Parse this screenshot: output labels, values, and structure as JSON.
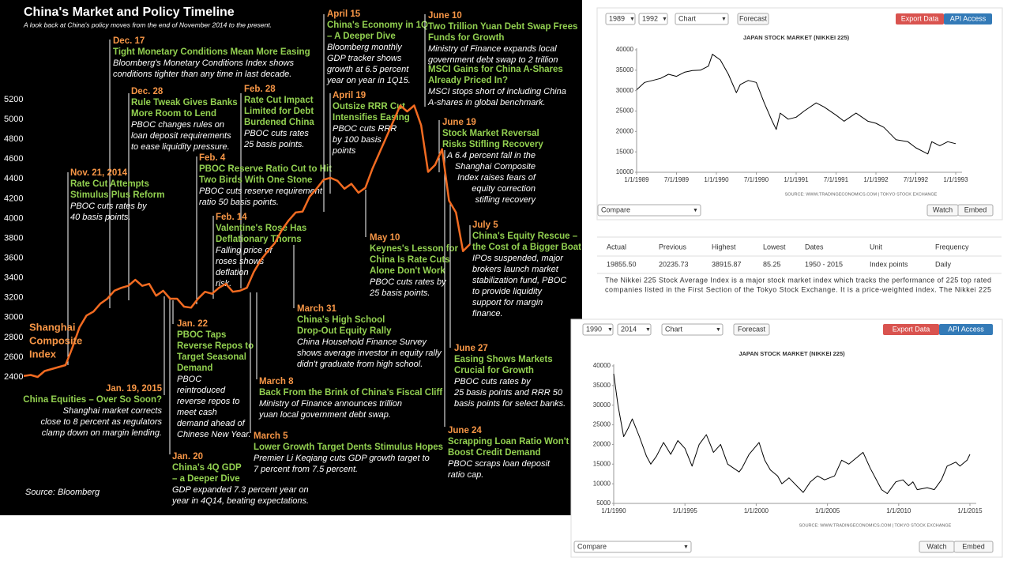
{
  "chart_data": [
    {
      "type": "line",
      "title": "China's Market and Policy Timeline",
      "subtitle": "A look back at China's policy moves from the end of November 2014 to the present.",
      "source": "Source: Bloomberg",
      "series": [
        {
          "name": [
            "Shanghai",
            "Composite",
            "Index"
          ],
          "color": "#f26b21",
          "values": [
            2410,
            2420,
            2400,
            2460,
            2480,
            2500,
            2520,
            2700,
            2900,
            3020,
            3060,
            3140,
            3190,
            3270,
            3300,
            3320,
            3380,
            3320,
            3340,
            3220,
            3270,
            3190,
            3190,
            3110,
            3100,
            3190,
            3260,
            3240,
            3300,
            3340,
            3260,
            3270,
            3300,
            3460,
            3580,
            3670,
            3750,
            3880,
            3980,
            4060,
            4070,
            4220,
            4300,
            4390,
            4410,
            4380,
            4300,
            4350,
            4260,
            4310,
            4500,
            4660,
            4820,
            4980,
            5140,
            5080,
            5140,
            4940,
            4470,
            4540,
            4700,
            4180,
            4060,
            3670,
            3740
          ]
        }
      ],
      "ylim": [
        2400,
        5200
      ],
      "yticks": [
        2400,
        2600,
        2800,
        3000,
        3200,
        3400,
        3600,
        3800,
        4000,
        4200,
        4400,
        4600,
        4800,
        5000,
        5200
      ],
      "annotations": [
        {
          "date": "Dec. 17",
          "title": [
            "Tight Monetary Conditions Mean More Easing"
          ],
          "text": [
            "Bloomberg's Monetary Conditions Index shows",
            "conditions tighter than any time in last decade."
          ]
        },
        {
          "date": "Dec. 28",
          "title": [
            "Rule Tweak Gives Banks",
            "More Room to Lend"
          ],
          "text": [
            "PBOC changes rules on",
            "loan deposit requirements",
            "to ease liquidity pressure."
          ]
        },
        {
          "date": "Nov. 21, 2014",
          "title": [
            "Rate Cut Attempts",
            "Stimulus Plus Reform"
          ],
          "text": [
            "PBOC cuts rates by",
            "40 basis points."
          ]
        },
        {
          "date": "Feb. 28",
          "title": [
            "Rate Cut Impact",
            "Limited for Debt",
            "Burdened China"
          ],
          "text": [
            "PBOC cuts rates",
            "25 basis points."
          ]
        },
        {
          "date": "Feb. 4",
          "title": [
            "PBOC Reserve Ratio Cut to Hit",
            "Two Birds With One Stone"
          ],
          "text": [
            "PBOC cuts reserve requirement",
            "ratio 50 basis points."
          ]
        },
        {
          "date": "Feb. 14",
          "title": [
            "Valentine's Rose Has",
            "Deflationary Thorns"
          ],
          "text": [
            "Falling price of",
            "roses shows",
            "deflation",
            "risk."
          ]
        },
        {
          "date": "April 15",
          "title": [
            "China's Economy in 1Q",
            "– A Deeper Dive"
          ],
          "text": [
            "Bloomberg monthly",
            "GDP tracker shows",
            "growth at 6.5 percent",
            "year on year in 1Q15."
          ]
        },
        {
          "date": "April 19",
          "title": [
            "Outsize RRR Cut",
            "Intensifies Easing"
          ],
          "text": [
            "PBOC cuts RRR",
            "by 100 basis",
            "points"
          ]
        },
        {
          "date": "June 10",
          "title": [
            "Two Trillion Yuan Debt Swap Frees",
            "Funds for Growth"
          ],
          "text": [
            "Ministry of Finance expands local",
            "government debt swap to 2 trillion"
          ]
        },
        {
          "title": [
            "MSCI Gains for China A-Shares",
            "Already Priced In?"
          ],
          "text": [
            "MSCI stops short of including China",
            "A-shares in global benchmark."
          ]
        },
        {
          "date": "June 19",
          "title": [
            "Stock Market Reversal",
            "Risks Stifling Recovery"
          ],
          "text": [
            "A 6.4 percent fall in the",
            "Shanghai Composite",
            "Index raises fears of",
            "equity correction",
            "stifling recovery"
          ]
        },
        {
          "date": "May 10",
          "title": [
            "Keynes's Lesson for",
            "China Is Rate Cuts",
            "Alone Don't Work"
          ],
          "text": [
            "PBOC cuts rates by",
            "25 basis points."
          ]
        },
        {
          "date": "July 5",
          "title": [
            "China's Equity Rescue –",
            "the Cost of a Bigger Boat"
          ],
          "text": [
            "IPOs suspended, major",
            "brokers launch market",
            "stabilization fund, PBOC",
            "to provide liquidity",
            "support for margin",
            "finance."
          ]
        },
        {
          "date": "March 31",
          "title": [
            "China's High School",
            "Drop-Out Equity Rally"
          ],
          "text": [
            "China Household Finance Survey",
            "shows average investor in equity rally",
            "didn't graduate from high school."
          ]
        },
        {
          "date": "Jan. 22",
          "title": [
            "PBOC Taps",
            "Reverse Repos to",
            "Target Seasonal",
            "Demand"
          ],
          "text": [
            "PBOC",
            "reintroduced",
            "reverse repos to",
            "meet cash",
            "demand ahead of",
            "Chinese New Year."
          ]
        },
        {
          "date": "March 8",
          "title": [
            "Back From the Brink of China's Fiscal Cliff"
          ],
          "text": [
            "Ministry of Finance announces trillion",
            "yuan local government debt swap."
          ]
        },
        {
          "date": "June 27",
          "title": [
            "Easing Shows Markets",
            "Crucial for Growth"
          ],
          "text": [
            "PBOC cuts rates by",
            "25 basis points and RRR 50",
            "basis points for select banks."
          ]
        },
        {
          "date": "Jan. 19, 2015",
          "title": [
            "China Equities – Over So Soon?"
          ],
          "text": [
            "Shanghai market corrects",
            "close to 8 percent as regulators",
            "clamp down on margin lending."
          ]
        },
        {
          "date": "June 24",
          "title": [
            "Scrapping Loan Ratio Won't",
            "Boost Credit Demand"
          ],
          "text": [
            "PBOC scraps loan deposit",
            "ratio cap."
          ]
        },
        {
          "date": "March 5",
          "title": [
            "Lower Growth Target Dents Stimulus Hopes"
          ],
          "text": [
            "Premier Li Keqiang cuts GDP growth target to",
            "7 percent from 7.5 percent."
          ]
        },
        {
          "date": "Jan. 20",
          "title": [
            "China's 4Q GDP",
            "– a Deeper Dive"
          ],
          "text": [
            "GDP expanded 7.3 percent year on",
            "year in 4Q14, beating expectations."
          ]
        }
      ]
    },
    {
      "type": "line",
      "title": "JAPAN STOCK MARKET (NIKKEI 225)",
      "source": "SOURCE: WWW.TRADINGECONOMICS.COM | TOKYO STOCK EXCHANGE",
      "x": [
        1989,
        1989.1,
        1989.2,
        1989.3,
        1989.4,
        1989.5,
        1989.6,
        1989.7,
        1989.8,
        1989.9,
        1989.95,
        1990.05,
        1990.15,
        1990.25,
        1990.3,
        1990.4,
        1990.5,
        1990.6,
        1990.7,
        1990.75,
        1990.8,
        1990.9,
        1991,
        1991.1,
        1991.25,
        1991.35,
        1991.5,
        1991.6,
        1991.75,
        1991.9,
        1992,
        1992.1,
        1992.25,
        1992.4,
        1992.5,
        1992.6,
        1992.65,
        1992.7,
        1992.8,
        1992.9,
        1993
      ],
      "series": [
        {
          "color": "#000000",
          "values": [
            30200,
            32000,
            32500,
            33000,
            34000,
            33500,
            34500,
            34900,
            35000,
            36000,
            38900,
            37500,
            34000,
            29500,
            31500,
            32500,
            32000,
            27000,
            22500,
            20500,
            24500,
            23000,
            23500,
            25000,
            27000,
            26000,
            24000,
            22500,
            24500,
            22500,
            22000,
            21000,
            18000,
            17500,
            16000,
            15000,
            14500,
            17500,
            16500,
            17500,
            17000
          ]
        }
      ],
      "xlim": [
        1989,
        1993
      ],
      "xticks": [
        {
          "value": 1989,
          "label": "1/1/1989"
        },
        {
          "value": 1989.5,
          "label": "7/1/1989"
        },
        {
          "value": 1990,
          "label": "1/1/1990"
        },
        {
          "value": 1990.5,
          "label": "7/1/1990"
        },
        {
          "value": 1991,
          "label": "1/1/1991"
        },
        {
          "value": 1991.5,
          "label": "7/1/1991"
        },
        {
          "value": 1992,
          "label": "1/1/1992"
        },
        {
          "value": 1992.5,
          "label": "7/1/1992"
        },
        {
          "value": 1993,
          "label": "1/1/1993"
        }
      ],
      "ylim": [
        10000,
        40000
      ],
      "yticks": [
        10000,
        15000,
        20000,
        25000,
        30000,
        35000,
        40000
      ]
    },
    {
      "type": "line",
      "title": "JAPAN STOCK MARKET (NIKKEI 225)",
      "source": "SOURCE: WWW.TRADINGECONOMICS.COM | TOKYO STOCK EXCHANGE",
      "x": [
        1990,
        1990.3,
        1990.7,
        1991,
        1991.3,
        1991.8,
        1992.3,
        1992.6,
        1993,
        1993.5,
        1994,
        1994.5,
        1995,
        1995.5,
        1996,
        1996.5,
        1997,
        1997.5,
        1998,
        1998.8,
        1999,
        1999.5,
        2000.2,
        2000.6,
        2001,
        2001.5,
        2001.8,
        2002.3,
        2003.3,
        2003.8,
        2004.3,
        2004.8,
        2005.5,
        2006,
        2006.5,
        2007.5,
        2008,
        2008.8,
        2009.2,
        2009.8,
        2010.3,
        2010.7,
        2011,
        2011.3,
        2012,
        2012.5,
        2013,
        2013.4,
        2014,
        2014.3,
        2014.8,
        2015
      ],
      "series": [
        {
          "color": "#000000",
          "values": [
            38000,
            30000,
            22000,
            24000,
            26500,
            22000,
            17000,
            15000,
            17000,
            20500,
            17500,
            21000,
            19000,
            14500,
            20000,
            22500,
            18000,
            20000,
            15000,
            13000,
            14000,
            17500,
            20500,
            16000,
            13500,
            12000,
            10000,
            11500,
            7800,
            10500,
            12000,
            11000,
            12000,
            16000,
            15000,
            18000,
            14000,
            8500,
            7500,
            10500,
            11000,
            9500,
            10500,
            8500,
            9000,
            8500,
            11000,
            14500,
            15500,
            14500,
            16000,
            17500
          ]
        }
      ],
      "xlim": [
        1990,
        2015
      ],
      "xticks": [
        {
          "value": 1990,
          "label": "1/1/1990"
        },
        {
          "value": 1995,
          "label": "1/1/1995"
        },
        {
          "value": 2000,
          "label": "1/1/2000"
        },
        {
          "value": 2005,
          "label": "1/1/2005"
        },
        {
          "value": 2010,
          "label": "1/1/2010"
        },
        {
          "value": 2015,
          "label": "1/1/2015"
        }
      ],
      "ylim": [
        5000,
        40000
      ],
      "yticks": [
        5000,
        10000,
        15000,
        20000,
        25000,
        30000,
        35000,
        40000
      ]
    }
  ],
  "widgets": [
    {
      "start": "1989",
      "end": "1992",
      "view": "Chart",
      "forecast": "Forecast",
      "export": "Export Data",
      "api": "API Access",
      "compare": "Compare",
      "watch": "Watch",
      "embed": "Embed"
    },
    {
      "start": "1990",
      "end": "2014",
      "view": "Chart",
      "forecast": "Forecast",
      "export": "Export Data",
      "api": "API Access",
      "compare": "Compare",
      "watch": "Watch",
      "embed": "Embed"
    }
  ],
  "table": {
    "headers": [
      "Actual",
      "Previous",
      "Highest",
      "Lowest",
      "Dates",
      "Unit",
      "Frequency"
    ],
    "rows": [
      [
        "19855.50",
        "20235.73",
        "38915.87",
        "85.25",
        "1950 - 2015",
        "Index points",
        "Daily"
      ]
    ]
  },
  "description": [
    "The Nikkei 225 Stock Average Index is a major stock market index which tracks the performance of 225 top rated",
    "companies listed in the First Section of the Tokyo Stock Exchange. It is a price-weighted index. The Nikkei 225"
  ]
}
